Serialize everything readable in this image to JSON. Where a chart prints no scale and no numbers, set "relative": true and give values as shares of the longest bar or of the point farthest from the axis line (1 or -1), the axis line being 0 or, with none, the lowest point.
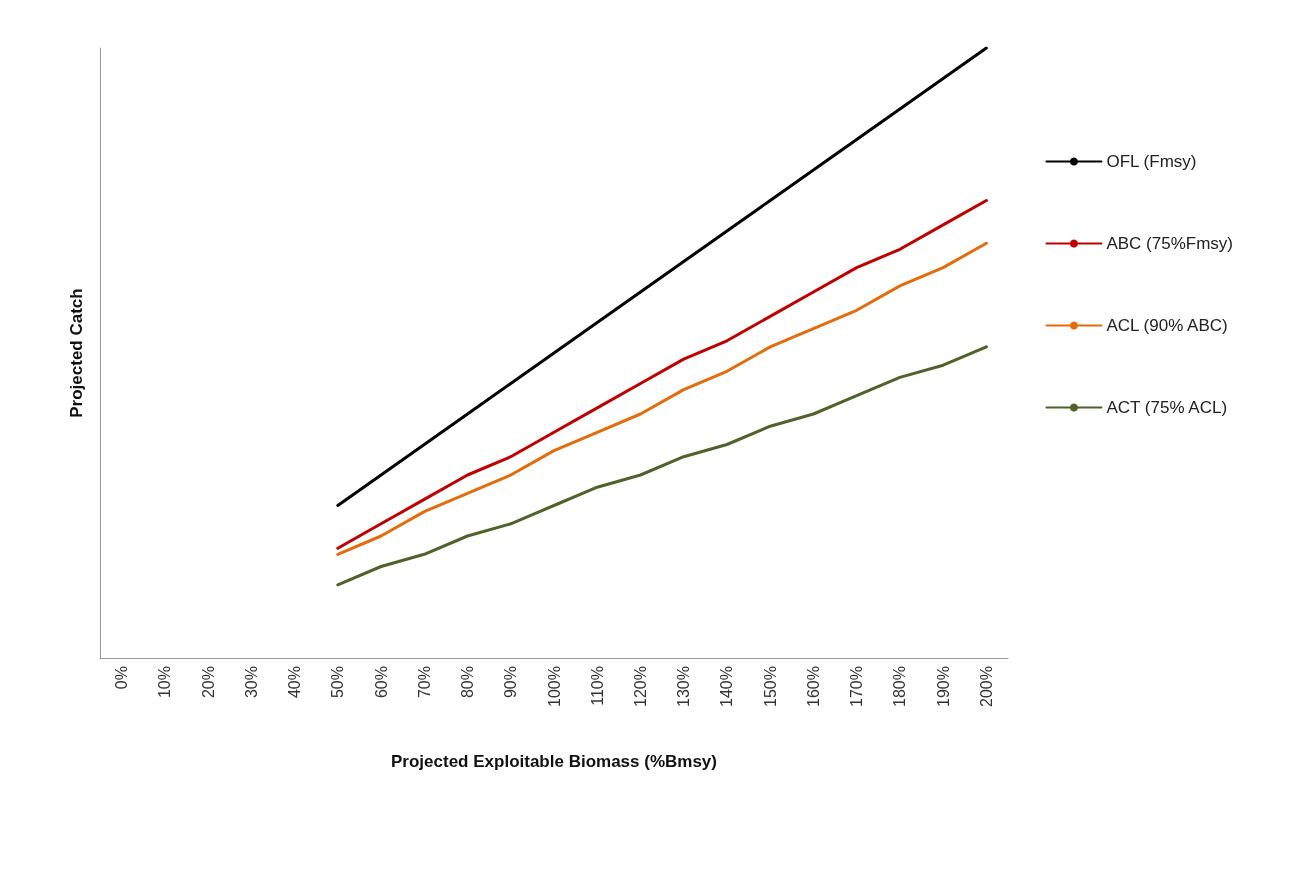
{
  "chart_data": {
    "type": "line",
    "relative": true,
    "xlabel": "Projected Exploitable Biomass (%Bmsy)",
    "ylabel": "Projected Catch",
    "categories": [
      "0%",
      "10%",
      "20%",
      "30%",
      "40%",
      "50%",
      "60%",
      "70%",
      "80%",
      "90%",
      "100%",
      "110%",
      "120%",
      "130%",
      "140%",
      "150%",
      "160%",
      "170%",
      "180%",
      "190%",
      "200%"
    ],
    "series": [
      {
        "name": "OFL (Fmsy)",
        "color": "#000000",
        "values": [
          null,
          null,
          null,
          null,
          null,
          0.25,
          0.3,
          0.35,
          0.4,
          0.45,
          0.5,
          0.55,
          0.6,
          0.65,
          0.7,
          0.75,
          0.8,
          0.85,
          0.9,
          0.95,
          1.0
        ]
      },
      {
        "name": "ABC (75%Fmsy)",
        "color": "#c00000",
        "values": [
          null,
          null,
          null,
          null,
          null,
          0.18,
          0.22,
          0.26,
          0.3,
          0.33,
          0.37,
          0.41,
          0.45,
          0.49,
          0.52,
          0.56,
          0.6,
          0.64,
          0.67,
          0.71,
          0.75
        ]
      },
      {
        "name": "ACL (90% ABC)",
        "color": "#e46c0a",
        "values": [
          null,
          null,
          null,
          null,
          null,
          0.17,
          0.2,
          0.24,
          0.27,
          0.3,
          0.34,
          0.37,
          0.4,
          0.44,
          0.47,
          0.51,
          0.54,
          0.57,
          0.61,
          0.64,
          0.68
        ]
      },
      {
        "name": "ACT (75% ACL)",
        "color": "#4f6228",
        "values": [
          null,
          null,
          null,
          null,
          null,
          0.12,
          0.15,
          0.17,
          0.2,
          0.22,
          0.25,
          0.28,
          0.3,
          0.33,
          0.35,
          0.38,
          0.4,
          0.43,
          0.46,
          0.48,
          0.51
        ]
      }
    ],
    "legend": "right",
    "grid": false,
    "marker": "none",
    "line_style": "solid"
  }
}
